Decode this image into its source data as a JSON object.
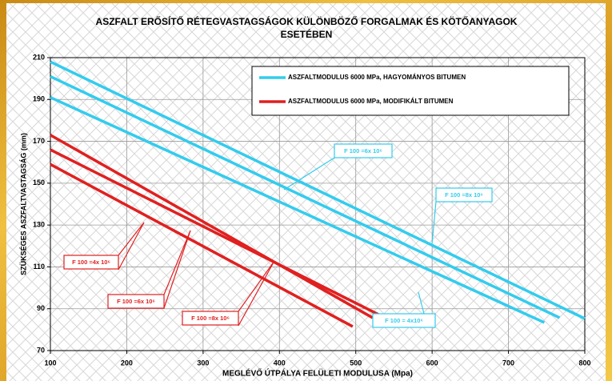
{
  "chart_data": {
    "type": "line",
    "title": [
      "ASZFALT ERŐSÍTŐ RÉTEGVASTAGSÁGOK KÜLÖNBÖZŐ FORGALMAK ÉS KÖTŐANYAGOK",
      "ESETÉBEN"
    ],
    "x_label": "MEGLÉVŐ ÚTPÁLYA FELÜLETI MODULUSA (Mpa)",
    "y_label": "SZÜKSÉGES ASZFALTVASTAGSÁG (mm)",
    "xlim": [
      100,
      800
    ],
    "xticks": [
      100,
      200,
      300,
      400,
      500,
      600,
      700,
      800
    ],
    "ylim": [
      70,
      210
    ],
    "yticks": [
      70,
      90,
      110,
      130,
      150,
      170,
      190,
      210
    ],
    "grid": true,
    "legend": [
      {
        "label": "ASZFALTMODULUS 6000 MPa, HAGYOMÁNYOS BITUMEN",
        "color": "#33ccee"
      },
      {
        "label": "ASZFALTMODULUS 6000 MPa, MODIFIKÁLT BITUMEN",
        "color": "#e02020"
      }
    ],
    "series": [
      {
        "color": "#33ccee",
        "x": [
          100,
          800
        ],
        "values": [
          208,
          85.3
        ]
      },
      {
        "color": "#33ccee",
        "x": [
          100,
          767
        ],
        "values": [
          201,
          85.7
        ]
      },
      {
        "color": "#33ccee",
        "x": [
          100,
          747
        ],
        "values": [
          191,
          83.4
        ]
      },
      {
        "color": "#e02020",
        "x": [
          100,
          522
        ],
        "values": [
          173,
          85.7
        ]
      },
      {
        "color": "#e02020",
        "x": [
          100,
          559
        ],
        "values": [
          166,
          81.9
        ]
      },
      {
        "color": "#e02020",
        "x": [
          100,
          496
        ],
        "values": [
          159,
          81.5
        ]
      }
    ],
    "annotations": [
      {
        "text": "F 100 =6x 10⁶",
        "color": "#33ccee"
      },
      {
        "text": "F 100 =8x 10⁶",
        "color": "#33ccee"
      },
      {
        "text": "F 100 = 4x10⁶",
        "color": "#33ccee"
      },
      {
        "text": "F 100 =4x 10⁶",
        "color": "#e02020"
      },
      {
        "text": "F 100 =6x 10⁶",
        "color": "#e02020"
      },
      {
        "text": "F 100 =8x 10⁶",
        "color": "#e02020"
      }
    ]
  }
}
